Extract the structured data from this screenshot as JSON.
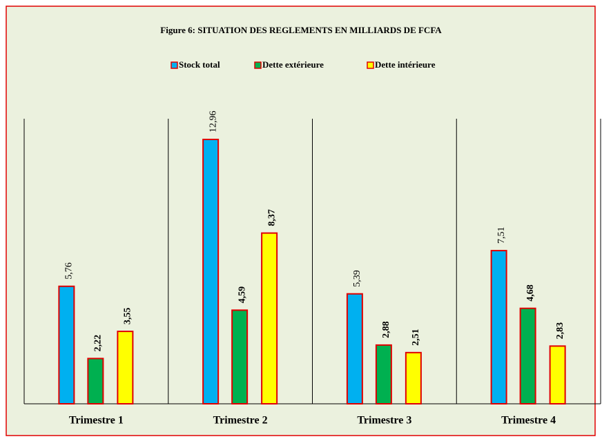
{
  "chart_data": {
    "type": "bar",
    "title": "Figure  6: SITUATION DES REGLEMENTS EN MILLIARDS DE FCFA",
    "categories": [
      "Trimestre 1",
      "Trimestre 2",
      "Trimestre 3",
      "Trimestre 4"
    ],
    "series": [
      {
        "name": "Stock total",
        "color": "#00b0f0",
        "values": [
          5.76,
          12.96,
          5.39,
          7.51
        ],
        "value_labels": [
          "5,76",
          "12,96",
          "5,39",
          "7,51"
        ]
      },
      {
        "name": "Dette extérieure",
        "color": "#00b050",
        "values": [
          2.22,
          4.59,
          2.88,
          4.68
        ],
        "value_labels": [
          "2,22",
          "4,59",
          "2,88",
          "4,68"
        ]
      },
      {
        "name": "Dette intérieure",
        "color": "#ffff00",
        "values": [
          3.55,
          8.37,
          2.51,
          2.83
        ],
        "value_labels": [
          "3,55",
          "8,37",
          "2,51",
          "2,83"
        ]
      }
    ],
    "legend": "top"
  }
}
